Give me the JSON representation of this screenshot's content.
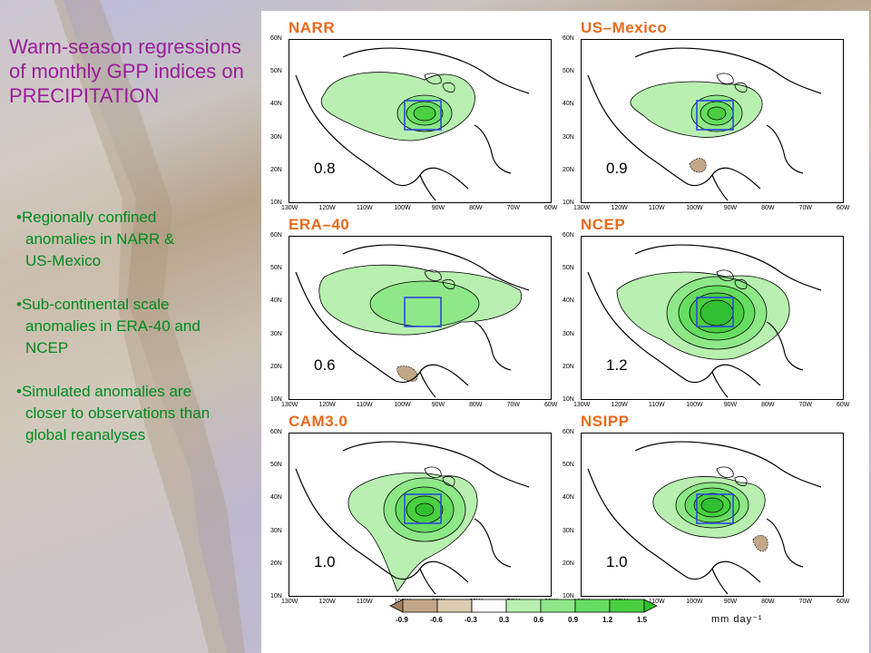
{
  "slide": {
    "title_lines": [
      "Warm-season regressions",
      "of monthly GPP indices on",
      "PRECIPITATION"
    ],
    "bullets": [
      {
        "lines": [
          "•Regionally confined",
          "anomalies in NARR &",
          "US-Mexico"
        ]
      },
      {
        "lines": [
          "•Sub-continental scale",
          "anomalies in ERA-40 and",
          "NCEP"
        ]
      },
      {
        "lines": [
          "•Simulated anomalies are",
          "closer to observations than",
          "global reanalyses"
        ]
      }
    ]
  },
  "axes": {
    "lat_ticks": [
      "60N",
      "50N",
      "40N",
      "30N",
      "20N",
      "10N"
    ],
    "lon_ticks": [
      "130W",
      "120W",
      "110W",
      "100W",
      "90W",
      "80W",
      "70W",
      "60W"
    ]
  },
  "panels": [
    {
      "name": "NARR",
      "value": "0.8"
    },
    {
      "name": "US–Mexico",
      "value": "0.9"
    },
    {
      "name": "ERA–40",
      "value": "0.6"
    },
    {
      "name": "NCEP",
      "value": "1.2"
    },
    {
      "name": "CAM3.0",
      "value": "1.0"
    },
    {
      "name": "NSIPP",
      "value": "1.0"
    }
  ],
  "colorbar": {
    "levels": [
      "-0.9",
      "-0.6",
      "-0.3",
      "0.3",
      "0.6",
      "0.9",
      "1.2",
      "1.5"
    ],
    "unit": "mm  day⁻¹",
    "colors": [
      "#a08060",
      "#c2a888",
      "#ddccb0",
      "#ffffff",
      "#b8f0b0",
      "#8ee888",
      "#66dd60",
      "#48d040",
      "#30c030"
    ]
  }
}
